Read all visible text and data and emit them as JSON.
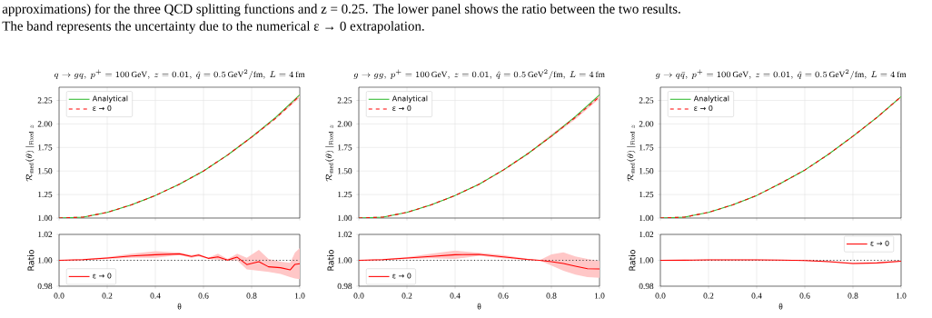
{
  "chart_data": [
    {
      "type": "line",
      "title": "q \\to gq,\\ p^{+} = 100\\,\\mathrm{GeV},\\ z = 0.01,\\ \\hat{q} = 0.5\\,\\mathrm{GeV}^{2}/\\mathrm{fm},\\ L = 4\\,\\mathrm{fm}",
      "ylabel": "\\mathcal{R}_{\\mathrm{med}}(\\theta)\\,|_{\\mathrm{Fixed}\\ z}",
      "annotations": [
        "approximations) for the three QCD splitting functions and z = 0.25. The lower panel shows the ratio between the two results.",
        "The band represents the uncertainty due to the numerical ε → 0 extrapolation."
      ],
      "x": [
        0,
        0.1,
        0.2,
        0.3,
        0.4,
        0.5,
        0.6,
        0.7,
        0.8,
        0.9,
        1.0
      ],
      "xlim": [
        0,
        1
      ],
      "ylim": [
        1.0,
        2.39
      ],
      "xticks": [
        0,
        0.2,
        0.4,
        0.6,
        0.8,
        1.0
      ],
      "yticks": [
        {
          "value": 1.0,
          "label": "1.00"
        },
        {
          "value": 1.25,
          "label": "1.25"
        },
        {
          "value": 1.5,
          "label": "1.50"
        },
        {
          "value": 1.75,
          "label": "1.75"
        },
        {
          "value": 2.0,
          "label": "2.00"
        },
        {
          "value": 2.25,
          "label": "2.25"
        }
      ],
      "tick_labels": "y",
      "grid": true,
      "legend": "top left",
      "series": [
        {
          "name": "Analytical",
          "color": "#33bb33",
          "line_style": "solid",
          "values": [
            1.0,
            1.01,
            1.06,
            1.14,
            1.24,
            1.36,
            1.5,
            1.67,
            1.86,
            2.07,
            2.31
          ]
        },
        {
          "name": "ε → 0",
          "color": "#ff0000",
          "line_style": "dashed",
          "values": [
            1.0,
            1.01,
            1.06,
            1.14,
            1.24,
            1.36,
            1.5,
            1.67,
            1.86,
            2.06,
            2.3
          ],
          "lower": [
            1.0,
            1.01,
            1.06,
            1.14,
            1.24,
            1.36,
            1.5,
            1.66,
            1.85,
            2.05,
            2.28
          ],
          "upper": [
            1.0,
            1.01,
            1.06,
            1.14,
            1.24,
            1.36,
            1.5,
            1.67,
            1.87,
            2.07,
            2.32
          ]
        }
      ]
    },
    {
      "type": "line",
      "title": "g \\to gg,\\ p^{+} = 100\\,\\mathrm{GeV},\\ z = 0.01,\\ \\hat{q} = 0.5\\,\\mathrm{GeV}^{2}/\\mathrm{fm},\\ L = 4\\,\\mathrm{fm}",
      "ylabel": "\\mathcal{R}_{\\mathrm{med}}(\\theta)\\,|_{\\mathrm{Fixed}\\ z}",
      "x": [
        0,
        0.1,
        0.2,
        0.3,
        0.4,
        0.5,
        0.6,
        0.7,
        0.8,
        0.9,
        1.0
      ],
      "xlim": [
        0,
        1
      ],
      "ylim": [
        1.0,
        2.39
      ],
      "xticks": [
        0,
        0.2,
        0.4,
        0.6,
        0.8,
        1.0
      ],
      "yticks": [
        {
          "value": 1.0,
          "label": "1.00"
        },
        {
          "value": 1.25,
          "label": "1.25"
        },
        {
          "value": 1.5,
          "label": "1.50"
        },
        {
          "value": 1.75,
          "label": "1.75"
        },
        {
          "value": 2.0,
          "label": "2.00"
        },
        {
          "value": 2.25,
          "label": "2.25"
        }
      ],
      "tick_labels": "y",
      "grid": true,
      "legend": "top left",
      "series": [
        {
          "name": "Analytical",
          "color": "#33bb33",
          "line_style": "solid",
          "values": [
            1.0,
            1.01,
            1.06,
            1.14,
            1.24,
            1.36,
            1.51,
            1.68,
            1.87,
            2.08,
            2.31
          ]
        },
        {
          "name": "ε → 0",
          "color": "#ff0000",
          "line_style": "dashed",
          "values": [
            1.0,
            1.01,
            1.06,
            1.14,
            1.24,
            1.36,
            1.51,
            1.68,
            1.87,
            2.07,
            2.29
          ],
          "lower": [
            1.0,
            1.01,
            1.06,
            1.14,
            1.24,
            1.36,
            1.5,
            1.67,
            1.86,
            2.05,
            2.27
          ],
          "upper": [
            1.0,
            1.01,
            1.06,
            1.14,
            1.24,
            1.36,
            1.51,
            1.68,
            1.89,
            2.08,
            2.31
          ]
        }
      ]
    },
    {
      "type": "line",
      "title": "g \\to q\\bar{q},\\ p^{+} = 100\\,\\mathrm{GeV},\\ z = 0.01,\\ \\hat{q} = 0.5\\,\\mathrm{GeV}^{2}/\\mathrm{fm},\\ L = 4\\,\\mathrm{fm}",
      "ylabel": "\\mathcal{R}_{\\mathrm{med}}(\\theta)\\,|_{\\mathrm{Fixed}\\ z}",
      "x": [
        0,
        0.1,
        0.2,
        0.3,
        0.4,
        0.5,
        0.6,
        0.7,
        0.8,
        0.9,
        1.0
      ],
      "xlim": [
        0,
        1
      ],
      "ylim": [
        1.0,
        2.39
      ],
      "xticks": [
        0,
        0.2,
        0.4,
        0.6,
        0.8,
        1.0
      ],
      "yticks": [
        {
          "value": 1.0,
          "label": "1.00"
        },
        {
          "value": 1.25,
          "label": "1.25"
        },
        {
          "value": 1.5,
          "label": "1.50"
        },
        {
          "value": 1.75,
          "label": "1.75"
        },
        {
          "value": 2.0,
          "label": "2.00"
        },
        {
          "value": 2.25,
          "label": "2.25"
        }
      ],
      "tick_labels": "y",
      "grid": true,
      "legend": "top left",
      "series": [
        {
          "name": "Analytical",
          "color": "#33bb33",
          "line_style": "solid",
          "values": [
            1.0,
            1.01,
            1.06,
            1.14,
            1.24,
            1.37,
            1.51,
            1.68,
            1.87,
            2.07,
            2.29
          ]
        },
        {
          "name": "ε → 0",
          "color": "#ff0000",
          "line_style": "dashed",
          "values": [
            1.0,
            1.01,
            1.06,
            1.14,
            1.24,
            1.37,
            1.51,
            1.68,
            1.87,
            2.07,
            2.29
          ],
          "lower": [
            1.0,
            1.01,
            1.06,
            1.14,
            1.24,
            1.37,
            1.51,
            1.68,
            1.86,
            2.06,
            2.28
          ],
          "upper": [
            1.0,
            1.01,
            1.06,
            1.14,
            1.24,
            1.37,
            1.51,
            1.68,
            1.87,
            2.07,
            2.29
          ]
        }
      ]
    },
    {
      "type": "line",
      "xlabel": "θ",
      "ylabel": "Ratio",
      "x": [
        0,
        0.1,
        0.2,
        0.3,
        0.4,
        0.5,
        0.55,
        0.58,
        0.62,
        0.66,
        0.7,
        0.74,
        0.78,
        0.83,
        0.87,
        0.92,
        0.96,
        0.98,
        1.0
      ],
      "xlim": [
        0,
        1
      ],
      "ylim": [
        0.98,
        1.02
      ],
      "xticks": [
        {
          "value": 0,
          "label": "0.0"
        },
        {
          "value": 0.2,
          "label": "0.2"
        },
        {
          "value": 0.4,
          "label": "0.4"
        },
        {
          "value": 0.6,
          "label": "0.6"
        },
        {
          "value": 0.8,
          "label": "0.8"
        },
        {
          "value": 1.0,
          "label": "1.0"
        }
      ],
      "yticks": [
        {
          "value": 0.98,
          "label": "0.98"
        },
        {
          "value": 1.0,
          "label": "1.00"
        },
        {
          "value": 1.02,
          "label": "1.02"
        }
      ],
      "grid": true,
      "legend": "bottom left",
      "ref_lines": [
        {
          "axis": "y",
          "value": 1,
          "color": "#333333",
          "line_style": "dotted"
        }
      ],
      "series": [
        {
          "name": "ε → 0",
          "color": "#ff0000",
          "line_style": "solid",
          "values": [
            1.0,
            1.0005,
            1.0017,
            1.0033,
            1.0043,
            1.005,
            1.003,
            1.004,
            1.0015,
            1.0026,
            1.0002,
            1.0024,
            0.9967,
            0.999,
            0.995,
            0.9943,
            0.9926,
            0.9969,
            0.9974
          ],
          "lower": [
            1.0,
            1.0,
            1.001,
            1.002,
            1.002,
            1.004,
            1.002,
            1.003,
            1.001,
            1.0005,
            0.9995,
            1.0,
            0.993,
            0.992,
            0.991,
            0.9895,
            0.987,
            0.986,
            0.9855
          ],
          "upper": [
            1.0,
            1.001,
            1.0025,
            1.005,
            1.007,
            1.006,
            1.004,
            1.005,
            1.002,
            1.005,
            1.001,
            1.005,
            1.002,
            1.008,
            1.001,
            0.999,
            0.998,
            1.006,
            1.0095
          ]
        }
      ]
    },
    {
      "type": "line",
      "xlabel": "θ",
      "ylabel": "Ratio",
      "x": [
        0,
        0.1,
        0.2,
        0.3,
        0.4,
        0.5,
        0.6,
        0.7,
        0.75,
        0.8,
        0.85,
        0.9,
        0.95,
        1.0
      ],
      "xlim": [
        0,
        1
      ],
      "ylim": [
        0.98,
        1.02
      ],
      "xticks": [
        {
          "value": 0,
          "label": "0.0"
        },
        {
          "value": 0.2,
          "label": "0.2"
        },
        {
          "value": 0.4,
          "label": "0.4"
        },
        {
          "value": 0.6,
          "label": "0.6"
        },
        {
          "value": 0.8,
          "label": "0.8"
        },
        {
          "value": 1.0,
          "label": "1.0"
        }
      ],
      "yticks": [
        {
          "value": 0.98,
          "label": "0.98"
        },
        {
          "value": 1.0,
          "label": "1.00"
        },
        {
          "value": 1.02,
          "label": "1.02"
        }
      ],
      "grid": true,
      "legend": "bottom left",
      "ref_lines": [
        {
          "axis": "y",
          "value": 1,
          "color": "#333333",
          "line_style": "dotted"
        }
      ],
      "series": [
        {
          "name": "ε → 0",
          "color": "#ff0000",
          "line_style": "solid",
          "values": [
            1.0,
            1.0005,
            1.0017,
            1.003,
            1.0043,
            1.0045,
            1.0026,
            1.0007,
            1.0,
            0.999,
            0.9975,
            0.9955,
            0.9935,
            0.9933
          ],
          "lower": [
            1.0,
            1.0,
            1.001,
            1.0015,
            1.001,
            1.0035,
            1.0015,
            1.0002,
            1.0,
            0.996,
            0.992,
            0.989,
            0.987,
            0.9865
          ],
          "upper": [
            1.0,
            1.001,
            1.0025,
            1.005,
            1.0075,
            1.0058,
            1.004,
            1.0012,
            1.0,
            1.0045,
            1.0062,
            1.003,
            1.001,
            0.9995
          ]
        }
      ]
    },
    {
      "type": "line",
      "xlabel": "θ",
      "ylabel": "Ratio",
      "x": [
        0,
        0.1,
        0.2,
        0.3,
        0.4,
        0.5,
        0.6,
        0.7,
        0.8,
        0.9,
        1.0
      ],
      "xlim": [
        0,
        1
      ],
      "ylim": [
        0.98,
        1.02
      ],
      "xticks": [
        {
          "value": 0,
          "label": "0.0"
        },
        {
          "value": 0.2,
          "label": "0.2"
        },
        {
          "value": 0.4,
          "label": "0.4"
        },
        {
          "value": 0.6,
          "label": "0.6"
        },
        {
          "value": 0.8,
          "label": "0.8"
        },
        {
          "value": 1.0,
          "label": "1.0"
        }
      ],
      "yticks": [
        {
          "value": 0.98,
          "label": "0.98"
        },
        {
          "value": 1.0,
          "label": "1.00"
        },
        {
          "value": 1.02,
          "label": "1.02"
        }
      ],
      "grid": true,
      "legend": "top right",
      "ref_lines": [
        {
          "axis": "y",
          "value": 1,
          "color": "#333333",
          "line_style": "dotted"
        }
      ],
      "series": [
        {
          "name": "ε → 0",
          "color": "#ff0000",
          "line_style": "solid",
          "values": [
            1.0,
            1.0001,
            1.0003,
            1.0004,
            1.0004,
            1.0002,
            0.9998,
            0.999,
            0.9975,
            0.998,
            0.9993
          ],
          "lower": [
            1.0,
            1.0,
            1.0001,
            1.0002,
            1.0002,
            1.0,
            0.9995,
            0.9986,
            0.997,
            0.9975,
            0.999
          ],
          "upper": [
            1.0,
            1.0002,
            1.0005,
            1.0006,
            1.0006,
            1.0004,
            1.0001,
            0.9994,
            0.998,
            0.9985,
            0.9996
          ]
        }
      ]
    }
  ]
}
